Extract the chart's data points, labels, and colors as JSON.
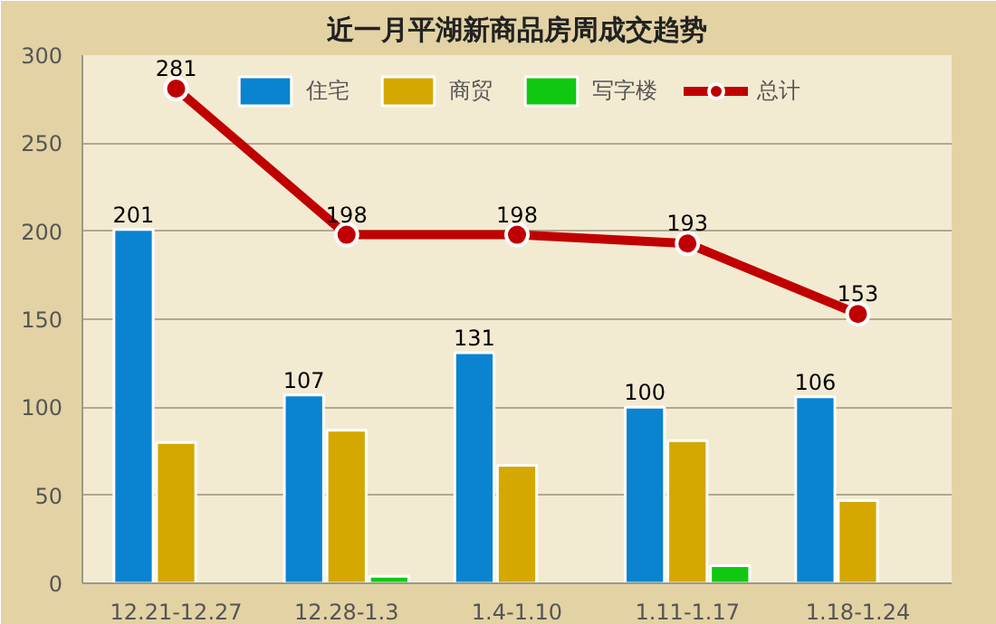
{
  "chart_data": {
    "type": "bar",
    "title": "近一月平湖新商品房周成交趋势",
    "categories": [
      "12.21-12.27",
      "12.28-1.3",
      "1.4-1.10",
      "1.11-1.17",
      "1.18-1.24"
    ],
    "series": [
      {
        "name": "住宅",
        "color": "#0a84d0",
        "values": [
          201,
          107,
          131,
          100,
          106
        ],
        "value_labels": [
          "201",
          "107",
          "131",
          "100",
          "106"
        ]
      },
      {
        "name": "商贸",
        "color": "#d4a800",
        "values": [
          80,
          87,
          67,
          81,
          47
        ]
      },
      {
        "name": "写字楼",
        "color": "#11c811",
        "values": [
          null,
          4,
          null,
          10,
          null
        ]
      },
      {
        "name": "总计",
        "type": "line",
        "color": "#c00000",
        "values": [
          281,
          198,
          198,
          193,
          153
        ],
        "value_labels": [
          "281",
          "198",
          "198",
          "193",
          "153"
        ]
      }
    ],
    "ylim": [
      0,
      300
    ],
    "yticks": [
      0,
      50,
      100,
      150,
      200,
      250,
      300
    ],
    "grid": "y",
    "legend": "top",
    "marker": "circle"
  }
}
